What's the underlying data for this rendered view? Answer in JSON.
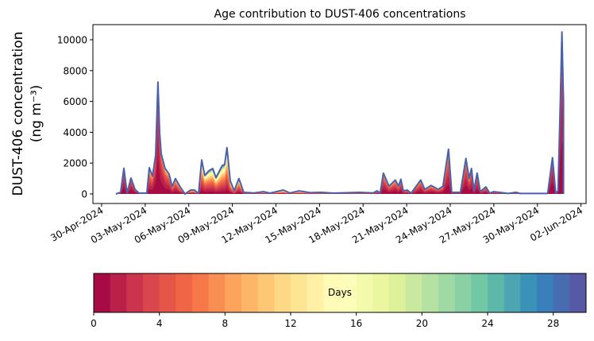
{
  "chart_data": {
    "type": "area",
    "title": "Age contribution to DUST-406 concentrations",
    "ylabel_line1": "DUST-406 concentration",
    "ylabel_line2": "(ng m⁻³)",
    "xlabel": "",
    "x_origin_date": "30-Apr-2024",
    "xlim_days": [
      -0.6,
      33.35
    ],
    "ylim": [
      -620,
      10980
    ],
    "yticks": [
      0,
      2000,
      4000,
      6000,
      8000,
      10000
    ],
    "ytick_labels": [
      "0",
      "2000",
      "4000",
      "6000",
      "8000",
      "10000"
    ],
    "xticks_days": [
      0,
      3,
      6,
      9,
      12,
      15,
      18,
      21,
      24,
      27,
      30,
      33
    ],
    "xtick_labels": [
      "30-Apr-2024",
      "03-May-2024",
      "06-May-2024",
      "09-May-2024",
      "12-May-2024",
      "15-May-2024",
      "18-May-2024",
      "21-May-2024",
      "24-May-2024",
      "27-May-2024",
      "30-May-2024",
      "02-Jun-2024"
    ],
    "series_note": "points are [days since 30-Apr-2024, total concentration ng/m3, age e-folding scale in days]",
    "points": [
      [
        0.98,
        0,
        3
      ],
      [
        1.31,
        100,
        3
      ],
      [
        1.53,
        1660,
        3
      ],
      [
        1.75,
        50,
        3
      ],
      [
        2.02,
        1030,
        3
      ],
      [
        2.3,
        300,
        3
      ],
      [
        2.57,
        50,
        3
      ],
      [
        3.11,
        50,
        4
      ],
      [
        3.28,
        1700,
        5
      ],
      [
        3.5,
        1150,
        4
      ],
      [
        3.72,
        2500,
        3
      ],
      [
        3.88,
        7250,
        2.5
      ],
      [
        3.99,
        4000,
        3
      ],
      [
        4.1,
        2600,
        3
      ],
      [
        4.37,
        1650,
        4
      ],
      [
        4.64,
        1300,
        4
      ],
      [
        4.86,
        480,
        5
      ],
      [
        5.08,
        1000,
        5
      ],
      [
        5.41,
        450,
        6
      ],
      [
        5.74,
        0,
        6
      ],
      [
        6.12,
        250,
        8
      ],
      [
        6.39,
        250,
        8
      ],
      [
        6.67,
        30,
        9
      ],
      [
        6.89,
        2200,
        9
      ],
      [
        7.1,
        1200,
        9
      ],
      [
        7.38,
        1500,
        10
      ],
      [
        7.65,
        1650,
        10
      ],
      [
        7.87,
        1050,
        10
      ],
      [
        8.31,
        1850,
        11
      ],
      [
        8.47,
        1900,
        11
      ],
      [
        8.63,
        3000,
        11
      ],
      [
        8.85,
        850,
        9
      ],
      [
        9.13,
        200,
        9
      ],
      [
        9.45,
        1000,
        8
      ],
      [
        9.78,
        100,
        10
      ],
      [
        10.49,
        60,
        14
      ],
      [
        11.15,
        150,
        14
      ],
      [
        11.58,
        50,
        14
      ],
      [
        12.51,
        250,
        14
      ],
      [
        12.95,
        60,
        14
      ],
      [
        13.61,
        200,
        14
      ],
      [
        14.32,
        80,
        15
      ],
      [
        15.14,
        100,
        15
      ],
      [
        15.96,
        50,
        15
      ],
      [
        17.76,
        100,
        15
      ],
      [
        18.69,
        60,
        10
      ],
      [
        18.96,
        200,
        6
      ],
      [
        19.18,
        60,
        5
      ],
      [
        19.4,
        1350,
        4
      ],
      [
        19.78,
        500,
        4
      ],
      [
        20.22,
        900,
        4
      ],
      [
        20.44,
        500,
        4
      ],
      [
        20.6,
        950,
        4
      ],
      [
        20.77,
        200,
        4
      ],
      [
        21.04,
        250,
        5
      ],
      [
        21.31,
        50,
        5
      ],
      [
        21.97,
        900,
        4
      ],
      [
        22.24,
        300,
        4
      ],
      [
        22.68,
        550,
        4
      ],
      [
        23.17,
        300,
        4
      ],
      [
        23.5,
        500,
        4
      ],
      [
        23.88,
        2900,
        4
      ],
      [
        24.1,
        100,
        5
      ],
      [
        24.7,
        100,
        5
      ],
      [
        25.08,
        2300,
        3.5
      ],
      [
        25.3,
        1000,
        4
      ],
      [
        25.46,
        1650,
        3.5
      ],
      [
        25.63,
        200,
        4
      ],
      [
        25.85,
        1350,
        3.5
      ],
      [
        26.07,
        150,
        4
      ],
      [
        26.45,
        450,
        4
      ],
      [
        26.72,
        50,
        6
      ],
      [
        26.99,
        150,
        6
      ],
      [
        27.98,
        30,
        8
      ],
      [
        28.52,
        100,
        8
      ],
      [
        28.8,
        30,
        8
      ],
      [
        30.71,
        30,
        4
      ],
      [
        31.04,
        2350,
        2.5
      ],
      [
        31.26,
        50,
        3
      ],
      [
        31.42,
        200,
        2
      ],
      [
        31.58,
        6000,
        2
      ],
      [
        31.69,
        10500,
        2.5
      ],
      [
        31.75,
        8000,
        2
      ],
      [
        31.8,
        6000,
        2
      ]
    ],
    "colorbar": {
      "label": "Days",
      "bins": 30,
      "range": [
        0,
        30
      ],
      "ticks": [
        0,
        4,
        8,
        12,
        16,
        20,
        24,
        28
      ],
      "tick_labels": [
        "0",
        "4",
        "8",
        "12",
        "16",
        "20",
        "24",
        "28"
      ],
      "colormap": "Spectral",
      "colormap_anchors": [
        "#9e0142",
        "#d53e4f",
        "#f46d43",
        "#fdae61",
        "#fee08b",
        "#ffffbf",
        "#e6f598",
        "#abdda4",
        "#66c2a5",
        "#3288bd",
        "#5e4fa2"
      ]
    },
    "total_line_color": "#4a60aa"
  }
}
